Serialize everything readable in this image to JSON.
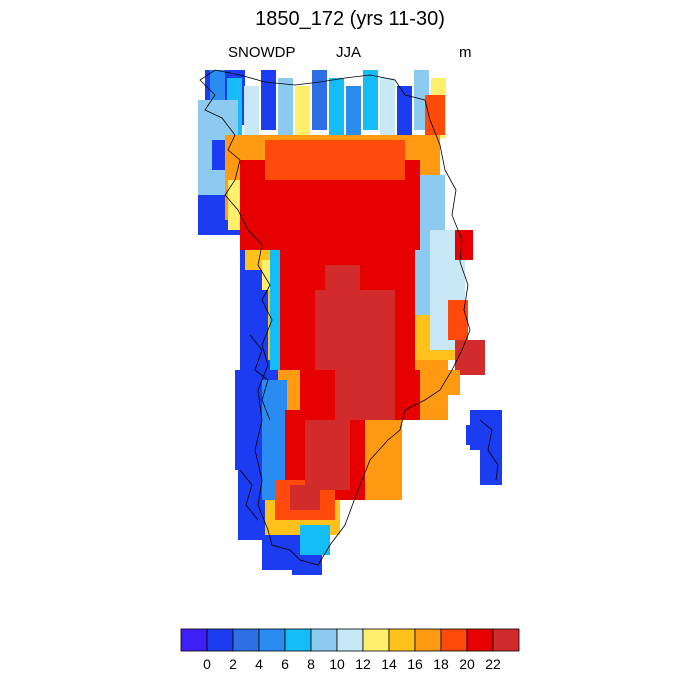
{
  "title": "1850_172 (yrs 11-30)",
  "left_label": "SNOWDP",
  "center_label": "JJA",
  "right_label": "m",
  "colorbar": {
    "colors": [
      "#3f1ff7",
      "#1b3cf0",
      "#2f6fe6",
      "#2a8bf1",
      "#14bdf6",
      "#8ccbef",
      "#c8e8f5",
      "#ffef6b",
      "#ffc21c",
      "#ff9a12",
      "#ff4a0a",
      "#e60000",
      "#d22b2b"
    ],
    "labels": [
      "0",
      "2",
      "4",
      "6",
      "8",
      "10",
      "12",
      "14",
      "16",
      "18",
      "20",
      "22"
    ]
  }
}
